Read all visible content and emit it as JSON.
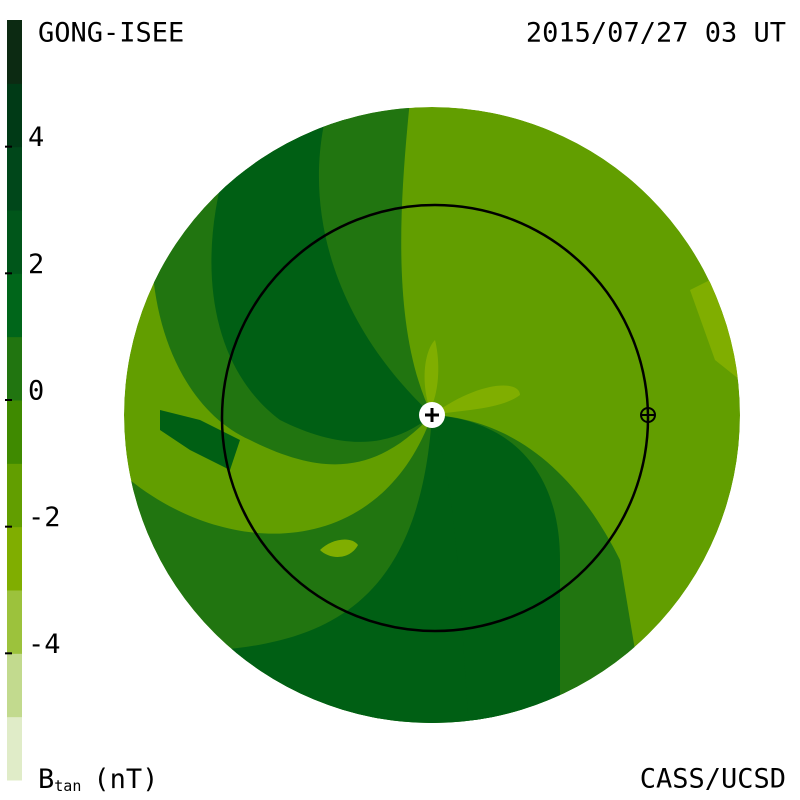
{
  "header": {
    "title": "GONG-ISEE",
    "timestamp": "2015/07/27 03 UT"
  },
  "footer": {
    "credit": "CASS/UCSD"
  },
  "colorbar": {
    "label": "B",
    "label_subscript": "tan",
    "unit": "(nT)",
    "range": [
      -6,
      6
    ],
    "ticks": [
      4,
      2,
      0,
      -2,
      -4
    ],
    "colors": [
      "#e0ecc8",
      "#c2da8e",
      "#9cc23c",
      "#80ae00",
      "#629e00",
      "#3f8a00",
      "#217510",
      "#00661a",
      "#00561a",
      "#00471a",
      "#003a16",
      "#0c2a12"
    ]
  }
}
